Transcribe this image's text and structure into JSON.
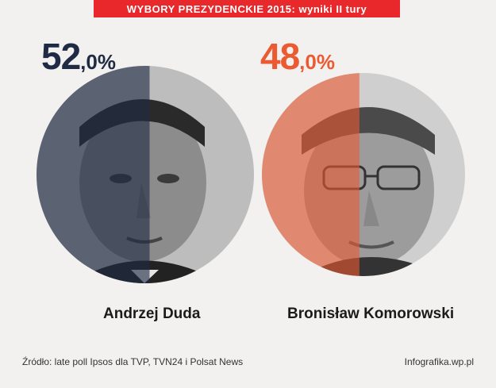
{
  "header": {
    "title": "WYBORY PREZYDENCKIE 2015: wyniki II tury"
  },
  "colors": {
    "banner": "#e8282b",
    "duda": "#1f2a44",
    "komorowski": "#ec5a31"
  },
  "chart_data": {
    "type": "pie",
    "title": "WYBORY PREZYDENCKIE 2015: wyniki II tury",
    "series": [
      {
        "name": "Andrzej Duda",
        "value": 52.0,
        "label_int": "52",
        "label_dec": ",0%",
        "color": "#1f2a44"
      },
      {
        "name": "Bronisław Komorowski",
        "value": 48.0,
        "label_int": "48",
        "label_dec": ",0%",
        "color": "#ec5a31"
      }
    ]
  },
  "footer": {
    "source": "Źródło: late poll Ipsos dla TVP, TVN24 i Polsat News",
    "credit": "Infografika.wp.pl"
  }
}
